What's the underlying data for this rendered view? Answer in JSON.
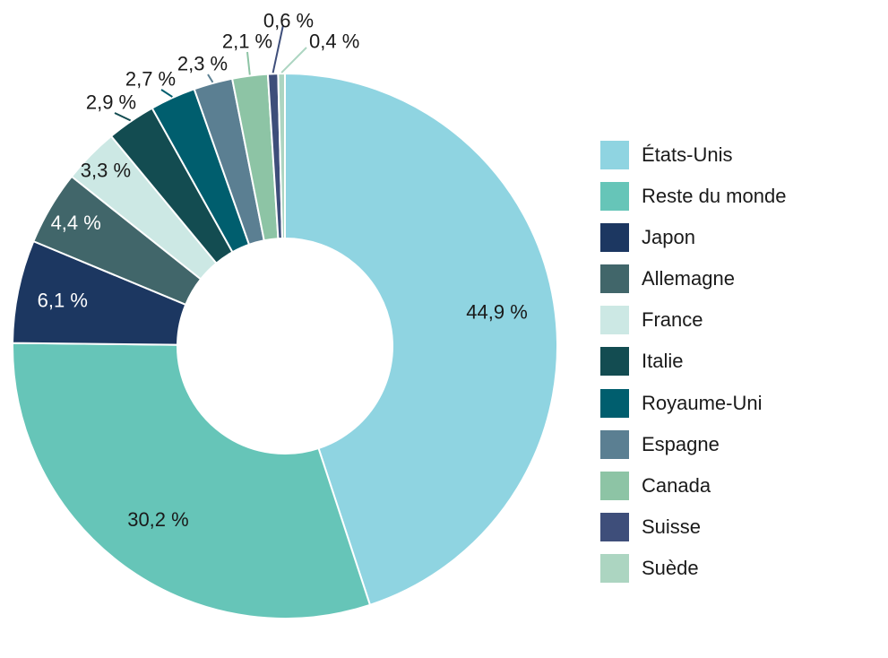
{
  "chart_data": {
    "type": "pie",
    "variant": "donut",
    "title": "",
    "legend_position": "right",
    "categories": [
      "États-Unis",
      "Reste du monde",
      "Japon",
      "Allemagne",
      "France",
      "Italie",
      "Royaume-Uni",
      "Espagne",
      "Canada",
      "Suisse",
      "Suède"
    ],
    "values": [
      44.9,
      30.2,
      6.1,
      4.4,
      3.3,
      2.9,
      2.7,
      2.3,
      2.1,
      0.6,
      0.4
    ],
    "value_labels": [
      "44,9 %",
      "30,2 %",
      "6,1 %",
      "4,4 %",
      "3,3 %",
      "2,9 %",
      "2,7 %",
      "2,3 %",
      "2,1 %",
      "0,6 %",
      "0,4 %"
    ],
    "colors": [
      "#8fd4e1",
      "#66c5b8",
      "#1c3761",
      "#41666a",
      "#cce8e4",
      "#134c51",
      "#005e6e",
      "#5b7f92",
      "#8dc4a5",
      "#3e4e7a",
      "#acd5c1"
    ]
  }
}
